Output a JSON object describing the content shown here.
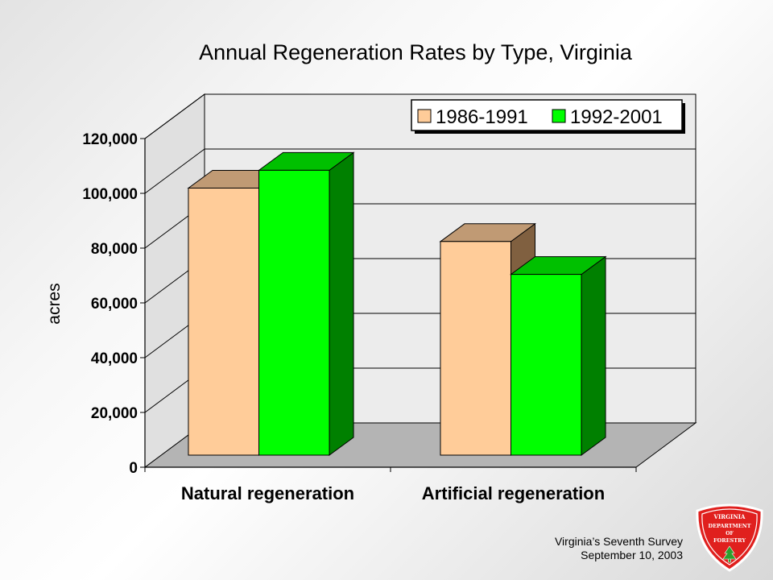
{
  "chart_data": {
    "type": "bar",
    "title": "Annual Regeneration Rates by Type, Virginia",
    "xlabel": "",
    "ylabel": "acres",
    "categories": [
      "Natural regeneration",
      "Artificial regeneration"
    ],
    "series": [
      {
        "name": "1986-1991",
        "values": [
          97500,
          78000
        ],
        "color": "#FFCC99",
        "top_color": "#C09A74",
        "side_color": "#806040"
      },
      {
        "name": "1992-2001",
        "values": [
          104000,
          66000
        ],
        "color": "#00FF00",
        "top_color": "#00C000",
        "side_color": "#008000"
      }
    ],
    "ylim": [
      0,
      120000
    ],
    "yticks": [
      0,
      20000,
      40000,
      60000,
      80000,
      100000,
      120000
    ],
    "ytick_labels": [
      "0",
      "20,000",
      "40,000",
      "60,000",
      "80,000",
      "100,000",
      "120,000"
    ],
    "grid": true,
    "legend_position": "top-right",
    "three_d": true
  },
  "footer": {
    "line1": "Virginia’s Seventh Survey",
    "line2": "September 10, 2003"
  },
  "logo": {
    "line1": "VIRGINIA",
    "line2": "DEPARTMENT",
    "line3": "OF",
    "line4": "FORESTRY",
    "color": "#E0201E"
  }
}
